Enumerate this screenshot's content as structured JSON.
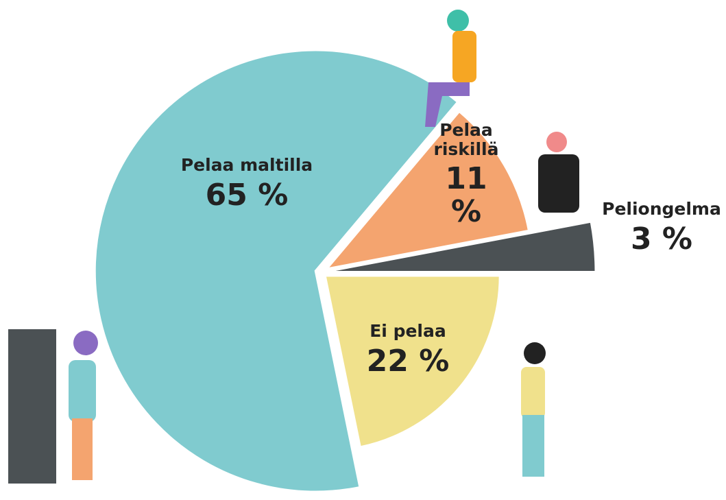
{
  "chart_data": {
    "type": "pie",
    "categories": [
      "Ei pelaa",
      "Pelaa maltilla",
      "Pelaa riskillä",
      "Peliongelma"
    ],
    "values": [
      22,
      65,
      11,
      3
    ],
    "value_labels": [
      "22 %",
      "65 %",
      "11 %",
      "3 %"
    ],
    "colors": [
      "#f0e18c",
      "#80cbcf",
      "#f4a46f",
      "#4b5154"
    ]
  }
}
